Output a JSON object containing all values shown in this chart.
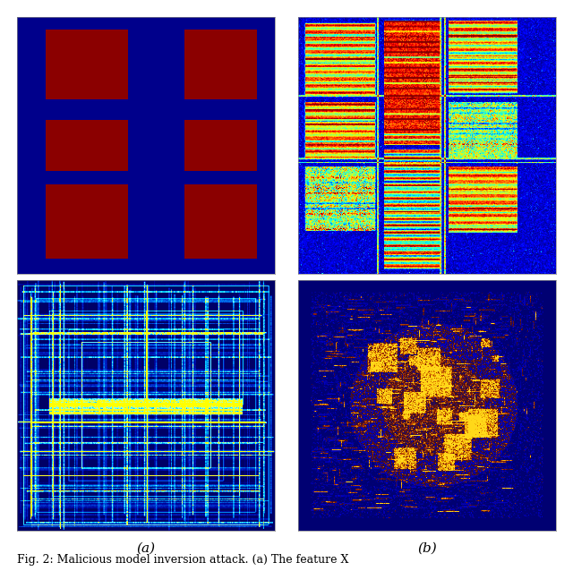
{
  "fig_width": 6.4,
  "fig_height": 6.38,
  "background_color": "#ffffff",
  "label_a": "(a)",
  "label_b": "(b)",
  "caption": "Fig. 2: Malicious model inversion attack. (a) The feature X",
  "blue_bg": "#00008B",
  "dark_red": "#8B0000",
  "label_fontsize": 11,
  "caption_fontsize": 9
}
